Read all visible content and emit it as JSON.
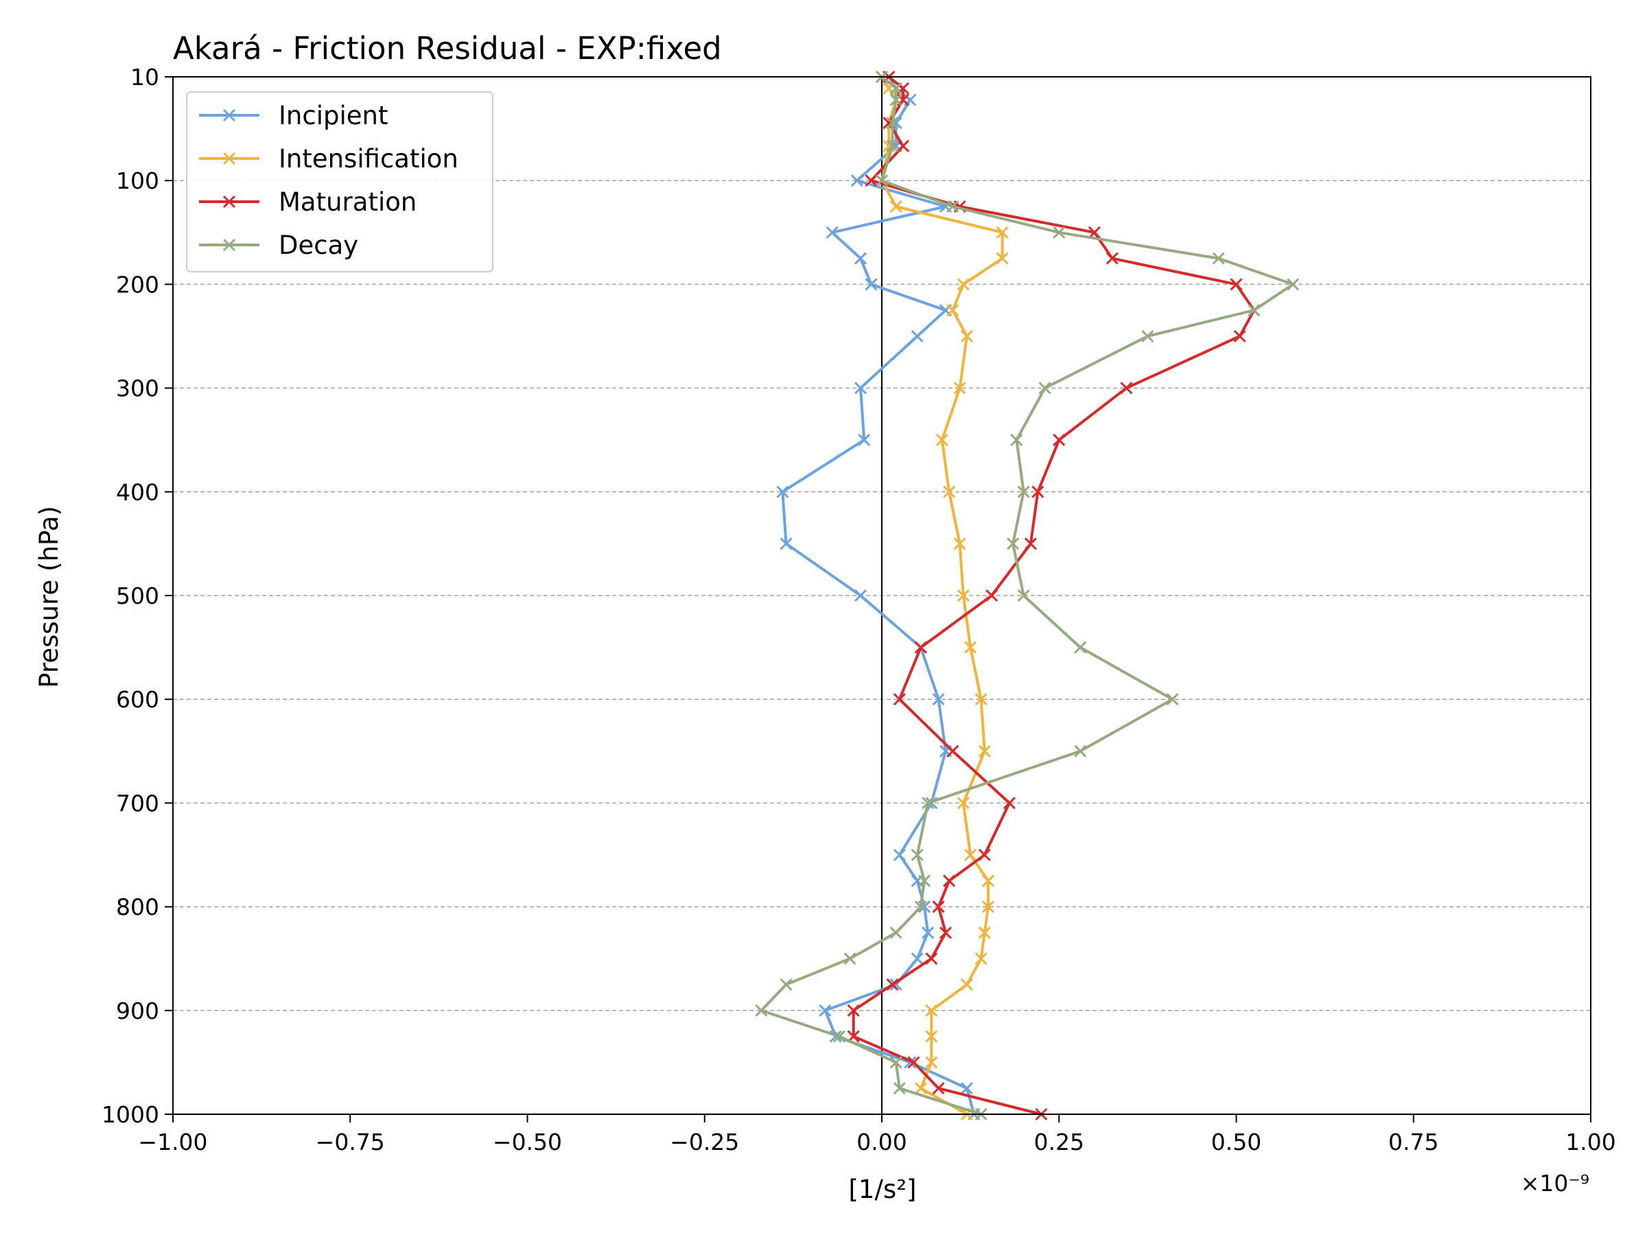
{
  "chart_data": {
    "type": "line",
    "title": "Akará - Friction Residual - EXP:fixed",
    "xlabel": "[1/s²]",
    "ylabel": "Pressure (hPa)",
    "x_multiplier": "×10⁻⁹",
    "xlim": [
      -1.0,
      1.0
    ],
    "ylim": [
      1000,
      10
    ],
    "x_ticks": [
      "−1.00",
      "−0.75",
      "−0.50",
      "−0.25",
      "0.00",
      "0.25",
      "0.50",
      "0.75",
      "1.00"
    ],
    "x_tick_values": [
      -1.0,
      -0.75,
      -0.5,
      -0.25,
      0.0,
      0.25,
      0.5,
      0.75,
      1.0
    ],
    "y_ticks": [
      "10",
      "100",
      "200",
      "300",
      "400",
      "500",
      "600",
      "700",
      "800",
      "900",
      "1000"
    ],
    "y_tick_values": [
      10,
      100,
      200,
      300,
      400,
      500,
      600,
      700,
      800,
      900,
      1000
    ],
    "grid": "horizontal dashed",
    "zero_line": true,
    "legend_position": "top-left",
    "pressure_levels": [
      10,
      20,
      30,
      50,
      70,
      100,
      125,
      150,
      175,
      200,
      225,
      250,
      300,
      350,
      400,
      450,
      500,
      550,
      600,
      650,
      700,
      750,
      775,
      800,
      825,
      850,
      875,
      900,
      925,
      950,
      975,
      1000
    ],
    "series": [
      {
        "name": "Incipient",
        "color": "#6aa2e2",
        "values": [
          0.01,
          0.02,
          0.04,
          0.02,
          0.02,
          -0.035,
          0.09,
          -0.07,
          -0.03,
          -0.015,
          0.09,
          0.05,
          -0.03,
          -0.025,
          -0.14,
          -0.135,
          -0.03,
          0.055,
          0.08,
          0.09,
          0.07,
          0.025,
          0.05,
          0.06,
          0.065,
          0.05,
          0.02,
          -0.08,
          -0.065,
          0.04,
          0.12,
          0.13
        ]
      },
      {
        "name": "Intensification",
        "color": "#f2b33d",
        "values": [
          0.0,
          0.01,
          0.02,
          0.01,
          0.01,
          0.0,
          0.02,
          0.17,
          0.17,
          0.115,
          0.1,
          0.12,
          0.11,
          0.085,
          0.095,
          0.11,
          0.115,
          0.125,
          0.14,
          0.145,
          0.115,
          0.125,
          0.15,
          0.15,
          0.145,
          0.14,
          0.12,
          0.07,
          0.07,
          0.07,
          0.055,
          0.12
        ]
      },
      {
        "name": "Maturation",
        "color": "#d62a2a",
        "values": [
          0.01,
          0.03,
          0.03,
          0.01,
          0.03,
          -0.015,
          0.11,
          0.3,
          0.325,
          0.5,
          0.525,
          0.505,
          0.345,
          0.25,
          0.22,
          0.21,
          0.155,
          0.055,
          0.025,
          0.1,
          0.18,
          0.145,
          0.095,
          0.08,
          0.09,
          0.07,
          0.015,
          -0.04,
          -0.04,
          0.045,
          0.08,
          0.225
        ]
      },
      {
        "name": "Decay",
        "color": "#96aa80",
        "values": [
          0.0,
          0.02,
          0.02,
          0.015,
          0.015,
          0.0,
          0.1,
          0.25,
          0.475,
          0.58,
          0.525,
          0.375,
          0.23,
          0.19,
          0.2,
          0.185,
          0.2,
          0.28,
          0.41,
          0.28,
          0.065,
          0.05,
          0.06,
          0.055,
          0.02,
          -0.045,
          -0.135,
          -0.17,
          -0.06,
          0.02,
          0.025,
          0.14
        ]
      }
    ]
  }
}
